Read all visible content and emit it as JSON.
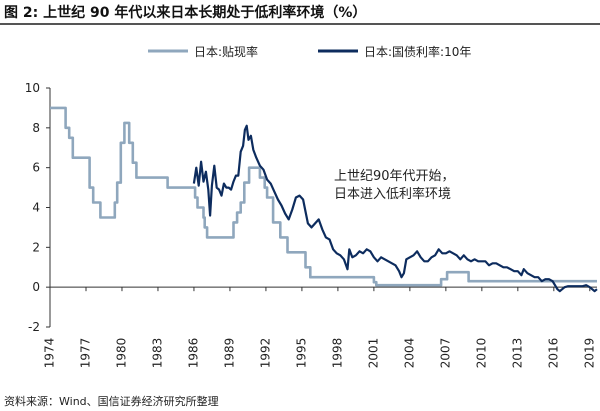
{
  "figure": {
    "title": "图 2: 上世纪 90 年代以来日本长期处于低利率环境（%）",
    "source": "资料来源：Wind、国信证券经济研究所整理"
  },
  "chart_data": {
    "type": "line",
    "title": "上世纪 90 年代以来日本长期处于低利率环境（%）",
    "xlabel": "",
    "ylabel": "",
    "xlim": [
      1974,
      2019.6
    ],
    "ylim": [
      -2,
      10
    ],
    "y_ticks": [
      -2,
      0,
      2,
      4,
      6,
      8,
      10
    ],
    "x_ticks": [
      1974,
      1977,
      1980,
      1983,
      1986,
      1989,
      1992,
      1995,
      1998,
      2001,
      2004,
      2007,
      2010,
      2013,
      2016,
      2019
    ],
    "grid": false,
    "legend_position": "top",
    "annotation": [
      "上世纪90年代开始，",
      "日本进入低利率环境"
    ],
    "colors": {
      "discount_rate": "#8fa7bd",
      "bond_yield": "#0d2c5e"
    },
    "series": [
      {
        "name": "日本:贴现率",
        "step": true,
        "x": [
          1974.0,
          1975.3,
          1975.6,
          1975.9,
          1977.3,
          1977.6,
          1978.2,
          1979.4,
          1979.6,
          1979.9,
          1980.2,
          1980.6,
          1980.9,
          1981.2,
          1981.9,
          1983.8,
          1986.1,
          1986.3,
          1986.8,
          1986.9,
          1987.1,
          1989.3,
          1989.6,
          1989.9,
          1990.2,
          1990.6,
          1991.5,
          1991.9,
          1992.1,
          1992.6,
          1993.2,
          1993.8,
          1995.3,
          1995.7,
          2001.0,
          2001.2,
          2001.7,
          2006.6,
          2007.1,
          2008.9,
          2019.6
        ],
        "values": [
          9.0,
          8.0,
          7.5,
          6.5,
          5.0,
          4.25,
          3.5,
          4.25,
          5.25,
          7.25,
          8.25,
          7.25,
          6.25,
          5.5,
          5.5,
          5.0,
          4.5,
          4.0,
          3.5,
          3.0,
          2.5,
          3.25,
          3.75,
          4.25,
          5.25,
          6.0,
          5.5,
          5.0,
          4.5,
          3.25,
          2.5,
          1.75,
          1.0,
          0.5,
          0.25,
          0.1,
          0.1,
          0.4,
          0.75,
          0.3,
          0.3
        ]
      },
      {
        "name": "日本:国债利率:10年",
        "step": false,
        "x": [
          1986.0,
          1986.2,
          1986.4,
          1986.6,
          1986.8,
          1987.0,
          1987.2,
          1987.35,
          1987.5,
          1987.7,
          1987.9,
          1988.1,
          1988.3,
          1988.5,
          1988.7,
          1988.9,
          1989.1,
          1989.3,
          1989.5,
          1989.7,
          1989.9,
          1990.1,
          1990.25,
          1990.4,
          1990.55,
          1990.75,
          1990.95,
          1991.2,
          1991.5,
          1991.8,
          1992.1,
          1992.4,
          1992.7,
          1993.0,
          1993.3,
          1993.6,
          1993.9,
          1994.2,
          1994.5,
          1994.8,
          1995.1,
          1995.3,
          1995.5,
          1995.8,
          1996.1,
          1996.4,
          1996.7,
          1997.0,
          1997.3,
          1997.6,
          1997.9,
          1998.2,
          1998.5,
          1998.8,
          1998.95,
          1999.2,
          1999.5,
          1999.8,
          2000.1,
          2000.4,
          2000.7,
          2001.0,
          2001.3,
          2001.6,
          2001.9,
          2002.2,
          2002.5,
          2002.8,
          2003.1,
          2003.3,
          2003.5,
          2003.7,
          2004.0,
          2004.3,
          2004.6,
          2004.9,
          2005.2,
          2005.5,
          2005.8,
          2006.1,
          2006.4,
          2006.7,
          2007.0,
          2007.3,
          2007.6,
          2007.9,
          2008.2,
          2008.5,
          2008.8,
          2009.1,
          2009.4,
          2009.7,
          2010.0,
          2010.3,
          2010.6,
          2010.9,
          2011.2,
          2011.5,
          2011.8,
          2012.1,
          2012.4,
          2012.7,
          2013.0,
          2013.3,
          2013.5,
          2013.8,
          2014.1,
          2014.4,
          2014.7,
          2015.0,
          2015.3,
          2015.6,
          2015.9,
          2016.1,
          2016.3,
          2016.5,
          2016.7,
          2016.9,
          2017.2,
          2017.5,
          2017.8,
          2018.1,
          2018.4,
          2018.7,
          2019.0,
          2019.2,
          2019.4,
          2019.6
        ],
        "values": [
          5.2,
          6.0,
          5.1,
          6.3,
          5.3,
          5.8,
          4.9,
          3.6,
          5.1,
          6.1,
          5.0,
          4.9,
          4.6,
          5.2,
          5.0,
          5.0,
          4.9,
          5.3,
          5.6,
          5.6,
          6.8,
          7.1,
          7.9,
          8.1,
          7.4,
          7.6,
          6.9,
          6.5,
          6.1,
          5.9,
          5.4,
          5.2,
          4.8,
          4.4,
          4.1,
          3.7,
          3.4,
          3.9,
          4.5,
          4.6,
          4.4,
          3.8,
          3.2,
          3.0,
          3.2,
          3.4,
          2.9,
          2.5,
          2.4,
          1.9,
          1.7,
          1.6,
          1.4,
          0.9,
          1.9,
          1.5,
          1.6,
          1.8,
          1.7,
          1.9,
          1.8,
          1.5,
          1.3,
          1.5,
          1.4,
          1.3,
          1.2,
          1.1,
          0.8,
          0.5,
          0.7,
          1.4,
          1.5,
          1.6,
          1.8,
          1.5,
          1.3,
          1.3,
          1.5,
          1.6,
          1.9,
          1.7,
          1.7,
          1.8,
          1.7,
          1.6,
          1.4,
          1.6,
          1.4,
          1.3,
          1.4,
          1.3,
          1.3,
          1.3,
          1.1,
          1.2,
          1.2,
          1.1,
          1.0,
          1.0,
          0.9,
          0.8,
          0.8,
          0.6,
          0.9,
          0.7,
          0.6,
          0.5,
          0.5,
          0.3,
          0.4,
          0.4,
          0.3,
          0.1,
          -0.1,
          -0.2,
          -0.1,
          0.0,
          0.05,
          0.05,
          0.05,
          0.05,
          0.05,
          0.1,
          0.0,
          -0.1,
          -0.2,
          -0.1
        ]
      }
    ]
  }
}
